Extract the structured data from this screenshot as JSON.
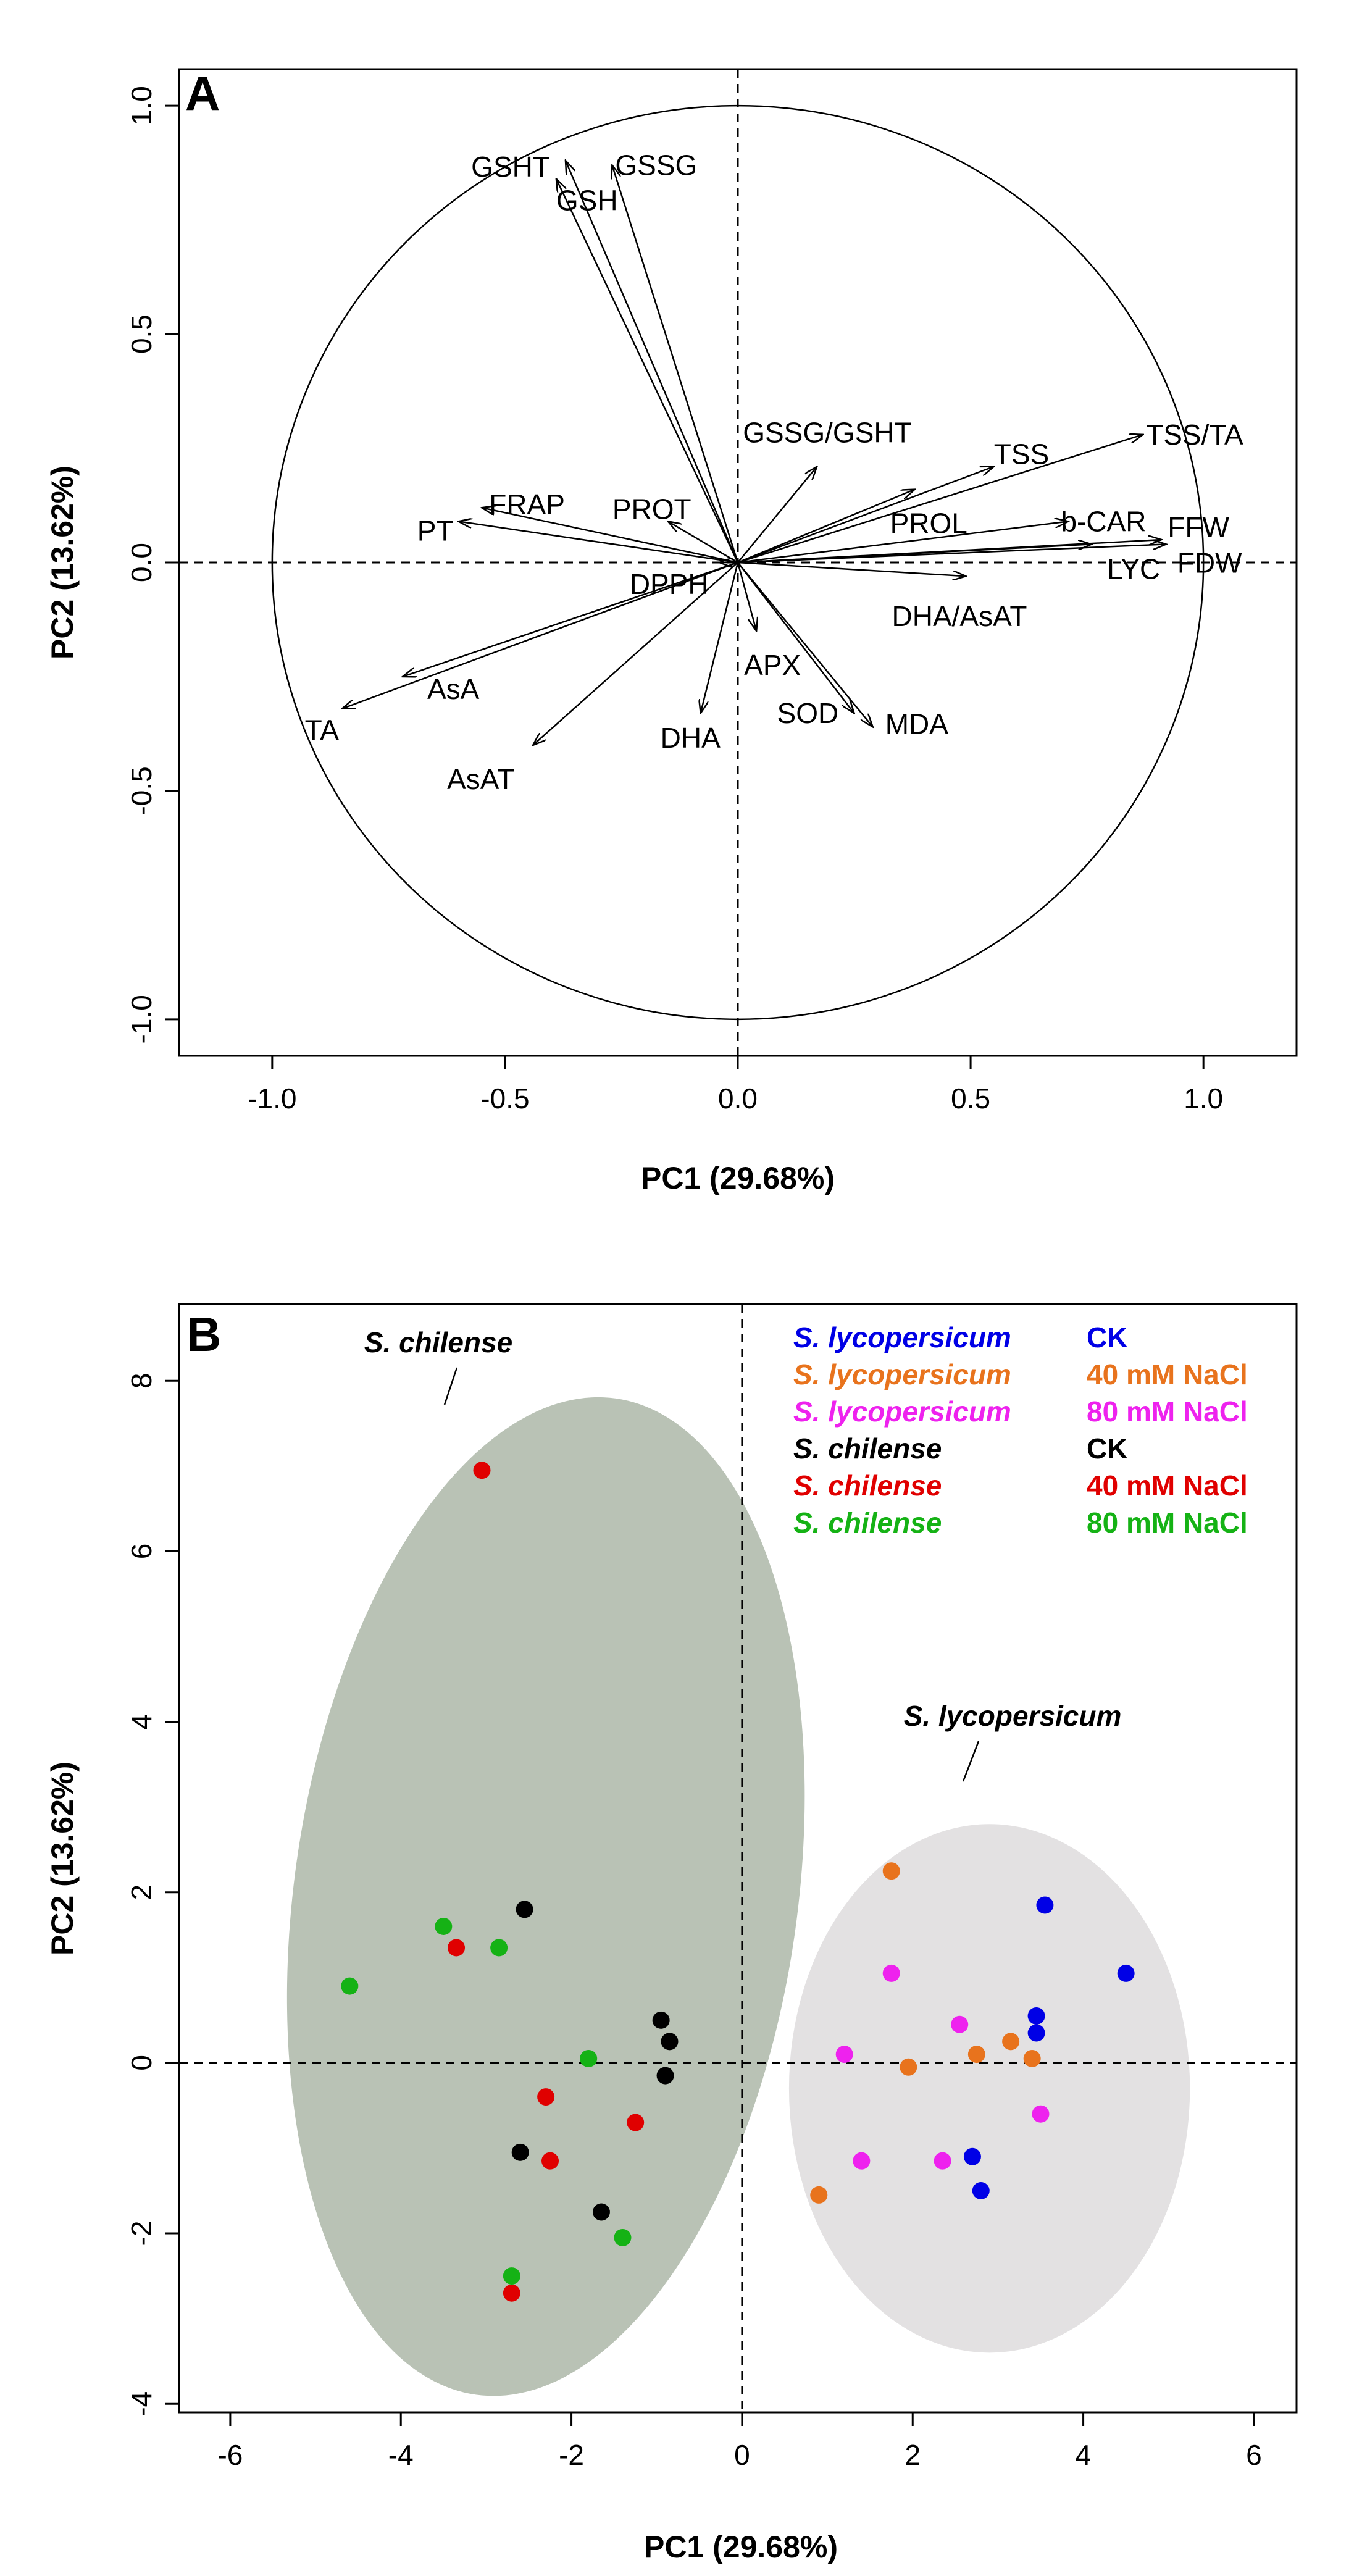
{
  "chart_data": [
    {
      "panel": "A",
      "type": "biplot-loadings",
      "xlabel": "PC1 (29.68%)",
      "ylabel": "PC2 (13.62%)",
      "xlim": [
        -1.2,
        1.2
      ],
      "ylim": [
        -1.08,
        1.08
      ],
      "xticks": [
        -1.0,
        -0.5,
        0.0,
        0.5,
        1.0
      ],
      "xtick_labels": [
        "-1.0",
        "-0.5",
        "0.0",
        "0.5",
        "1.0"
      ],
      "yticks": [
        -1.0,
        -0.5,
        0.0,
        0.5,
        1.0
      ],
      "ytick_labels": [
        "-1.0",
        "-0.5",
        "0.0",
        "0.5",
        "1.0"
      ],
      "unit_circle": true,
      "reference_lines": "dashed at x=0 and y=0",
      "vectors": [
        {
          "label": "GSHT",
          "x": -0.37,
          "y": 0.88
        },
        {
          "label": "GSH",
          "x": -0.39,
          "y": 0.84
        },
        {
          "label": "GSSG",
          "x": -0.27,
          "y": 0.87
        },
        {
          "label": "GSSG/GSHT",
          "x": 0.17,
          "y": 0.21
        },
        {
          "label": "TSS",
          "x": 0.55,
          "y": 0.21
        },
        {
          "label": "TSS/TA",
          "x": 0.87,
          "y": 0.28
        },
        {
          "label": "PROL",
          "x": 0.38,
          "y": 0.16
        },
        {
          "label": "b-CAR",
          "x": 0.71,
          "y": 0.09
        },
        {
          "label": "FFW",
          "x": 0.91,
          "y": 0.05
        },
        {
          "label": "FDW",
          "x": 0.92,
          "y": 0.04
        },
        {
          "label": "LYC",
          "x": 0.76,
          "y": 0.04
        },
        {
          "label": "DHA/AsAT",
          "x": 0.49,
          "y": -0.03
        },
        {
          "label": "PROT",
          "x": -0.15,
          "y": 0.09
        },
        {
          "label": "FRAP",
          "x": -0.55,
          "y": 0.12
        },
        {
          "label": "PT",
          "x": -0.6,
          "y": 0.09
        },
        {
          "label": "DPPH",
          "x": -0.04,
          "y": 0.0
        },
        {
          "label": "APX",
          "x": 0.04,
          "y": -0.15
        },
        {
          "label": "AsA",
          "x": -0.72,
          "y": -0.25
        },
        {
          "label": "TA",
          "x": -0.85,
          "y": -0.32
        },
        {
          "label": "AsAT",
          "x": -0.44,
          "y": -0.4
        },
        {
          "label": "DHA",
          "x": -0.08,
          "y": -0.33
        },
        {
          "label": "SOD",
          "x": 0.25,
          "y": -0.33
        },
        {
          "label": "MDA",
          "x": 0.29,
          "y": -0.36
        }
      ]
    },
    {
      "panel": "B",
      "type": "scatter",
      "xlabel": "PC1 (29.68%)",
      "ylabel": "PC2 (13.62%)",
      "xlim": [
        -6.6,
        6.5
      ],
      "ylim": [
        -4.1,
        8.9
      ],
      "xticks": [
        -6,
        -4,
        -2,
        0,
        2,
        4,
        6
      ],
      "xtick_labels": [
        "-6",
        "-4",
        "-2",
        "0",
        "2",
        "4",
        "6"
      ],
      "yticks": [
        -4,
        -2,
        0,
        2,
        4,
        6,
        8
      ],
      "ytick_labels": [
        "-4",
        "-2",
        "0",
        "2",
        "4",
        "6",
        "8"
      ],
      "reference_lines": "dashed at x=0 and y=0",
      "ellipses": [
        {
          "label": "S. chilense",
          "cx": -2.3,
          "cy": 1.95,
          "rx": 2.95,
          "ry": 5.9,
          "rotation_deg": 8,
          "color": "#b9c2b5"
        },
        {
          "label": "S. lycopersicum",
          "cx": 2.9,
          "cy": -0.3,
          "rx": 2.35,
          "ry": 3.1,
          "rotation_deg": 0,
          "color": "#e3e1e2"
        }
      ],
      "legend": {
        "position": "top-right",
        "entries": [
          {
            "species": "S. lycopersicum",
            "treatment": "CK",
            "color": "#0000e6"
          },
          {
            "species": "S. lycopersicum",
            "treatment": "40 mM NaCl",
            "color": "#e8731d"
          },
          {
            "species": "S. lycopersicum",
            "treatment": "80 mM NaCl",
            "color": "#ee22ee"
          },
          {
            "species": "S. chilense",
            "treatment": "CK",
            "color": "#000000"
          },
          {
            "species": "S. chilense",
            "treatment": "40 mM NaCl",
            "color": "#e00000"
          },
          {
            "species": "S. chilense",
            "treatment": "80 mM NaCl",
            "color": "#15b215"
          }
        ]
      },
      "series": [
        {
          "name": "S. lycopersicum CK",
          "color": "#0000e6",
          "points": [
            [
              3.55,
              1.85
            ],
            [
              4.5,
              1.05
            ],
            [
              3.45,
              0.55
            ],
            [
              3.45,
              0.35
            ],
            [
              2.7,
              -1.1
            ],
            [
              2.8,
              -1.5
            ]
          ]
        },
        {
          "name": "S. lycopersicum 40 mM NaCl",
          "color": "#e8731d",
          "points": [
            [
              1.75,
              2.25
            ],
            [
              3.15,
              0.25
            ],
            [
              2.75,
              0.1
            ],
            [
              3.4,
              0.05
            ],
            [
              1.95,
              -0.05
            ],
            [
              0.9,
              -1.55
            ]
          ]
        },
        {
          "name": "S. lycopersicum 80 mM NaCl",
          "color": "#ee22ee",
          "points": [
            [
              1.75,
              1.05
            ],
            [
              2.55,
              0.45
            ],
            [
              1.2,
              0.1
            ],
            [
              3.5,
              -0.6
            ],
            [
              1.4,
              -1.15
            ],
            [
              2.35,
              -1.15
            ]
          ]
        },
        {
          "name": "S. chilense CK",
          "color": "#000000",
          "points": [
            [
              -2.55,
              1.8
            ],
            [
              -0.95,
              0.5
            ],
            [
              -0.85,
              0.25
            ],
            [
              -0.9,
              -0.15
            ],
            [
              -2.6,
              -1.05
            ],
            [
              -1.65,
              -1.75
            ]
          ]
        },
        {
          "name": "S. chilense 40 mM NaCl",
          "color": "#e00000",
          "points": [
            [
              -3.05,
              6.95
            ],
            [
              -3.35,
              1.35
            ],
            [
              -2.3,
              -0.4
            ],
            [
              -1.25,
              -0.7
            ],
            [
              -2.25,
              -1.15
            ],
            [
              -2.7,
              -2.7
            ]
          ]
        },
        {
          "name": "S. chilense 80 mM NaCl",
          "color": "#15b215",
          "points": [
            [
              -4.6,
              0.9
            ],
            [
              -3.5,
              1.6
            ],
            [
              -2.85,
              1.35
            ],
            [
              -1.8,
              0.05
            ],
            [
              -1.4,
              -2.05
            ],
            [
              -2.7,
              -2.5
            ]
          ]
        }
      ],
      "annotations": [
        "S. chilense",
        "S. lycopersicum"
      ]
    }
  ]
}
